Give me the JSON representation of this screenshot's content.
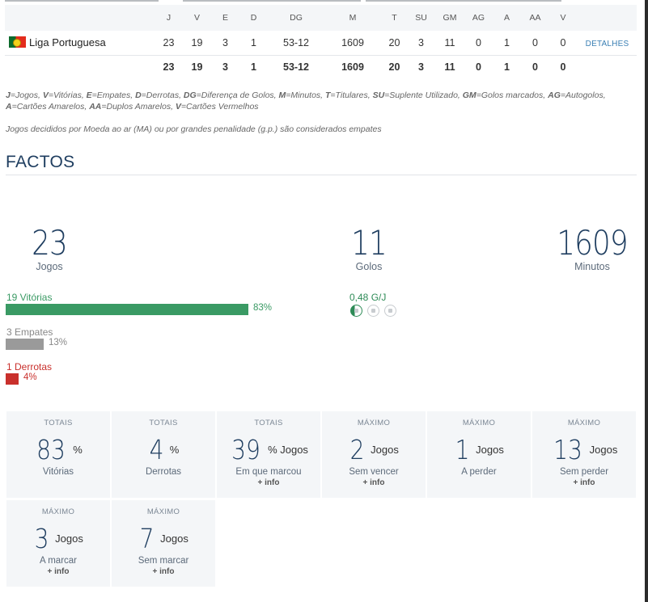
{
  "table": {
    "headers": [
      "J",
      "V",
      "E",
      "D",
      "DG",
      "M",
      "T",
      "SU",
      "GM",
      "AG",
      "A",
      "AA",
      "V"
    ],
    "row": {
      "competition": "Liga Portuguesa",
      "values": [
        "23",
        "19",
        "3",
        "1",
        "53-12",
        "1609",
        "20",
        "3",
        "11",
        "0",
        "1",
        "0",
        "0"
      ],
      "details": "DETALHES"
    },
    "totals": [
      "23",
      "19",
      "3",
      "1",
      "53-12",
      "1609",
      "20",
      "3",
      "11",
      "0",
      "1",
      "0",
      "0"
    ]
  },
  "legend": [
    {
      "k": "J",
      "v": "Jogos"
    },
    {
      "k": "V",
      "v": "Vitórias"
    },
    {
      "k": "E",
      "v": "Empates"
    },
    {
      "k": "D",
      "v": "Derrotas"
    },
    {
      "k": "DG",
      "v": "Diferença de Golos"
    },
    {
      "k": "M",
      "v": "Minutos"
    },
    {
      "k": "T",
      "v": "Titulares"
    },
    {
      "k": "SU",
      "v": "Suplente Utilizado"
    },
    {
      "k": "GM",
      "v": "Golos marcados"
    },
    {
      "k": "AG",
      "v": "Autogolos"
    },
    {
      "k": "A",
      "v": "Cartões Amarelos"
    },
    {
      "k": "AA",
      "v": "Duplos Amarelos"
    },
    {
      "k": "V",
      "v": "Cartões Vermelhos"
    }
  ],
  "note": "Jogos decididos por Moeda ao ar (MA) ou por grandes penalidade (g.p.) são considerados empates",
  "facts": {
    "title": "FACTOS",
    "games": {
      "value": "23",
      "label": "Jogos"
    },
    "goals": {
      "value": "11",
      "label": "Golos"
    },
    "minutes": {
      "value": "1609",
      "label": "Minutos"
    },
    "results": [
      {
        "label": "19 Vitórias",
        "pct_label": "83%",
        "pct": 83,
        "color": "#3a9a64"
      },
      {
        "label": "3 Empates",
        "pct_label": "13%",
        "pct": 13,
        "color": "#9a9a9a"
      },
      {
        "label": "1 Derrotas",
        "pct_label": "4%",
        "pct": 4,
        "color": "#c9302c"
      }
    ],
    "goals_per_game": "0,48 G/J",
    "goals_per_game_value": 0.48
  },
  "tiles": [
    {
      "cap": "TOTAIS",
      "value": "83",
      "unit": "%",
      "desc": "Vitórias",
      "more": ""
    },
    {
      "cap": "TOTAIS",
      "value": "4",
      "unit": "%",
      "desc": "Derrotas",
      "more": ""
    },
    {
      "cap": "TOTAIS",
      "value": "39",
      "unit": "% Jogos",
      "desc": "Em que marcou",
      "more": "+ info"
    },
    {
      "cap": "MÁXIMO",
      "value": "2",
      "unit": "Jogos",
      "desc": "Sem vencer",
      "more": "+ info"
    },
    {
      "cap": "MÁXIMO",
      "value": "1",
      "unit": "Jogos",
      "desc": "A perder",
      "more": ""
    },
    {
      "cap": "MÁXIMO",
      "value": "13",
      "unit": "Jogos",
      "desc": "Sem perder",
      "more": "+ info"
    },
    {
      "cap": "MÁXIMO",
      "value": "3",
      "unit": "Jogos",
      "desc": "A marcar",
      "more": "+ info"
    },
    {
      "cap": "MÁXIMO",
      "value": "7",
      "unit": "Jogos",
      "desc": "Sem marcar",
      "more": "+ info"
    }
  ],
  "colors": {
    "accent": "#1f3e60",
    "link": "#3a7fb4",
    "win": "#3a9a64",
    "draw": "#9a9a9a",
    "loss": "#c9302c"
  }
}
